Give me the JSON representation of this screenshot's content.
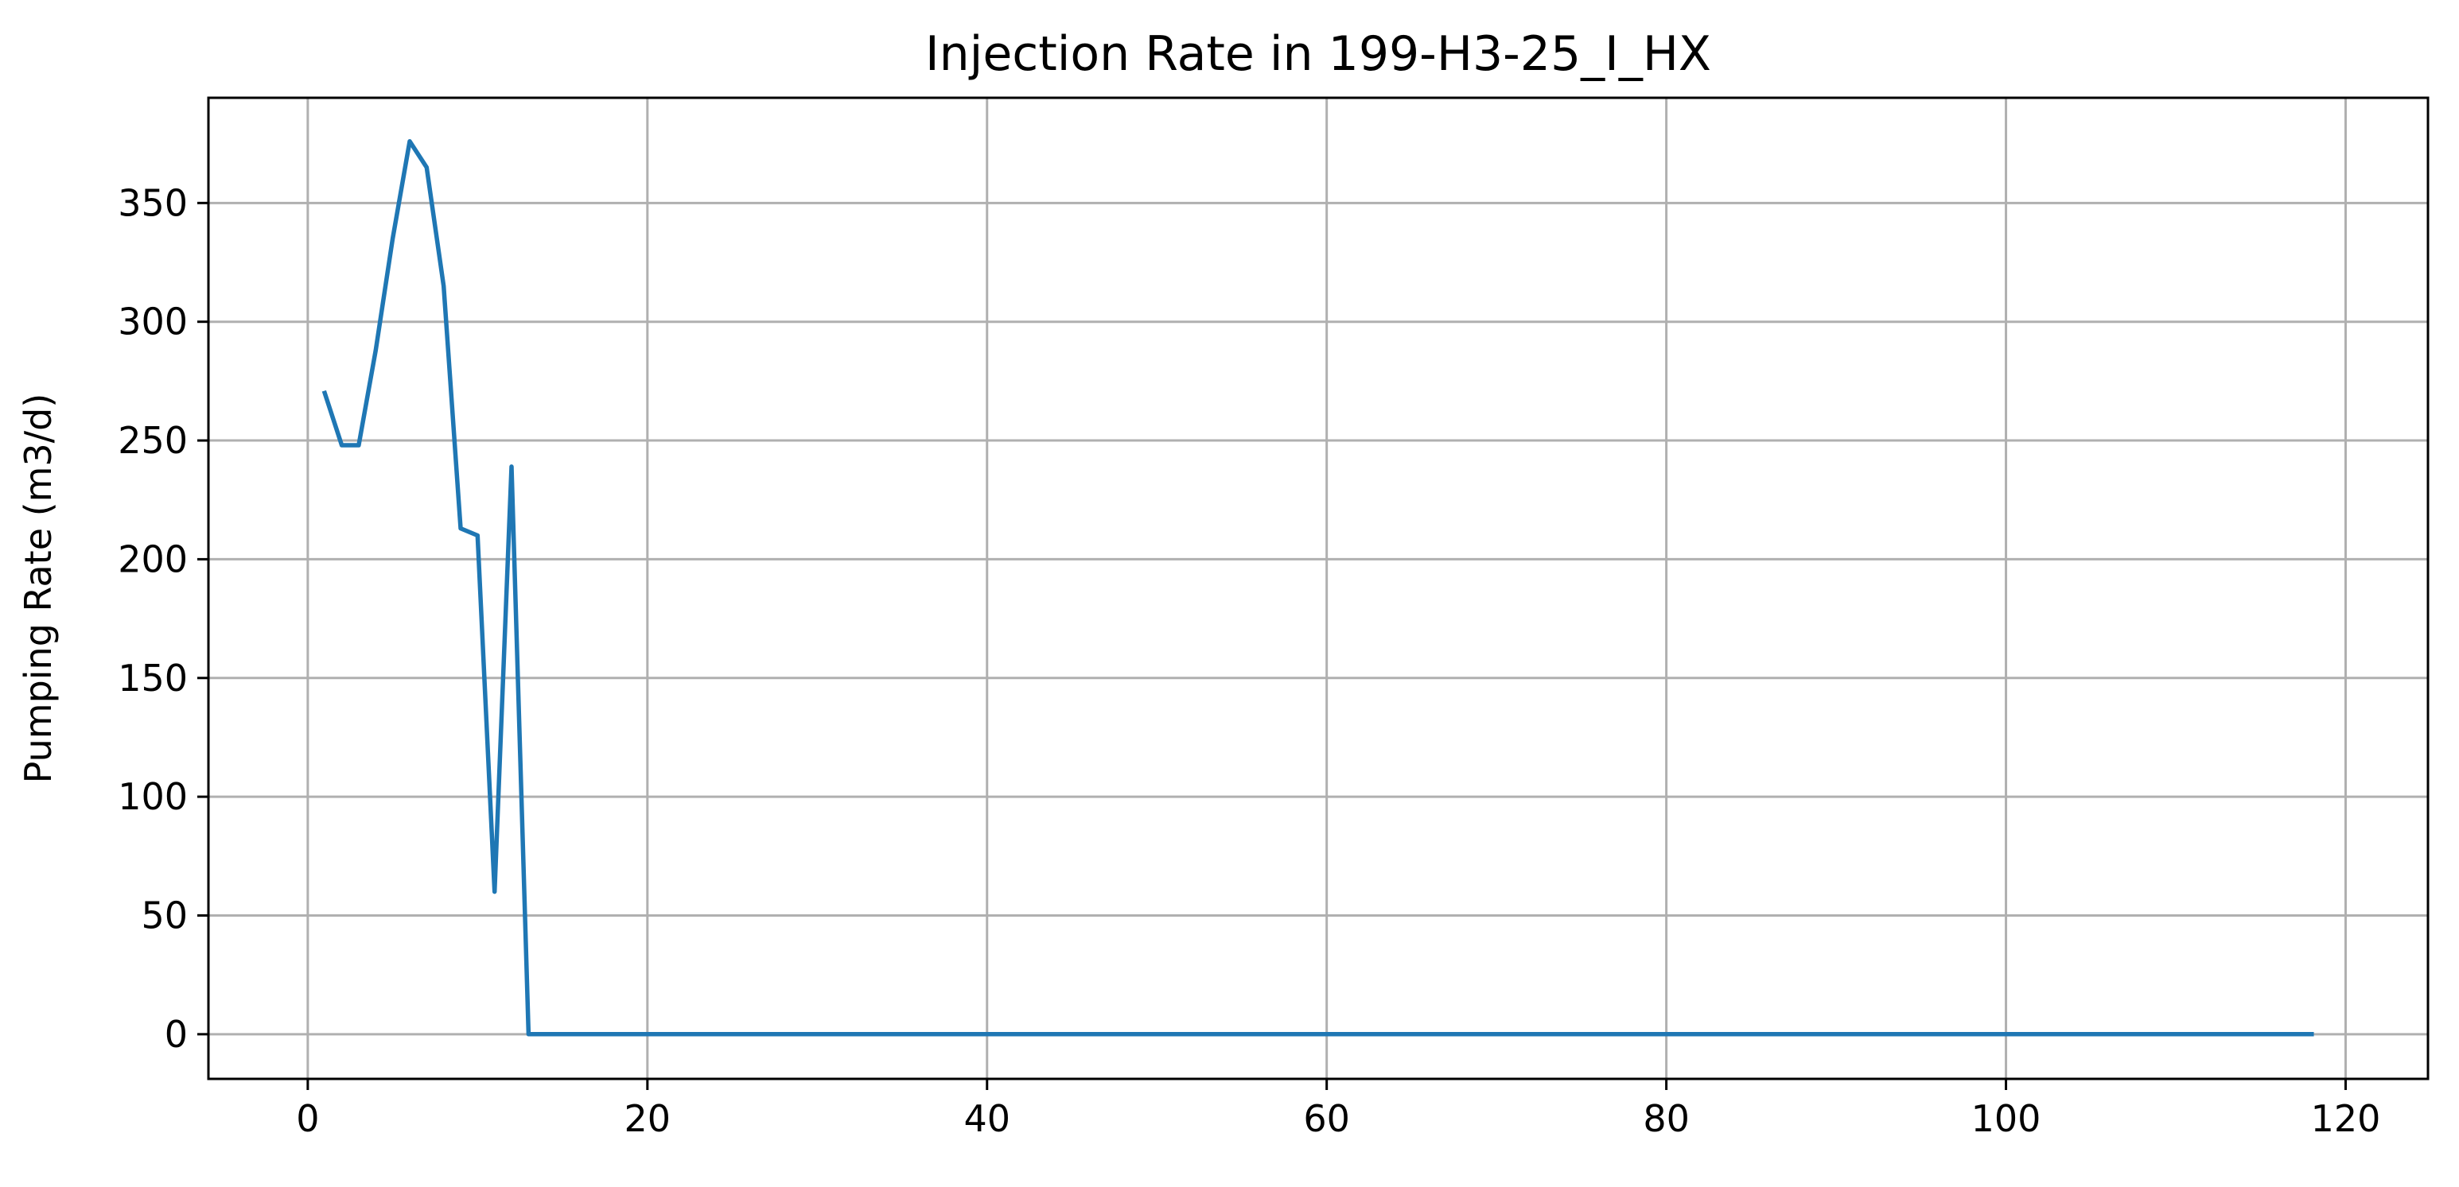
{
  "chart_data": {
    "type": "line",
    "title": "Injection Rate in 199-H3-25_I_HX",
    "xlabel": "",
    "ylabel": "Pumping Rate (m3/d)",
    "xlim": [
      -5.85,
      124.85
    ],
    "ylim": [
      -18.8,
      394.3
    ],
    "grid": true,
    "x_ticks": [
      0,
      20,
      40,
      60,
      80,
      100,
      120
    ],
    "y_ticks": [
      0,
      50,
      100,
      150,
      200,
      250,
      300,
      350
    ],
    "series": [
      {
        "color": "#1f77b4",
        "x": [
          1,
          2,
          3,
          4,
          5,
          6,
          7,
          8,
          9,
          10,
          11,
          12,
          13,
          118
        ],
        "y": [
          270,
          248,
          248,
          288,
          335,
          376,
          365,
          315,
          213,
          210,
          60,
          239,
          0,
          0
        ]
      }
    ]
  }
}
